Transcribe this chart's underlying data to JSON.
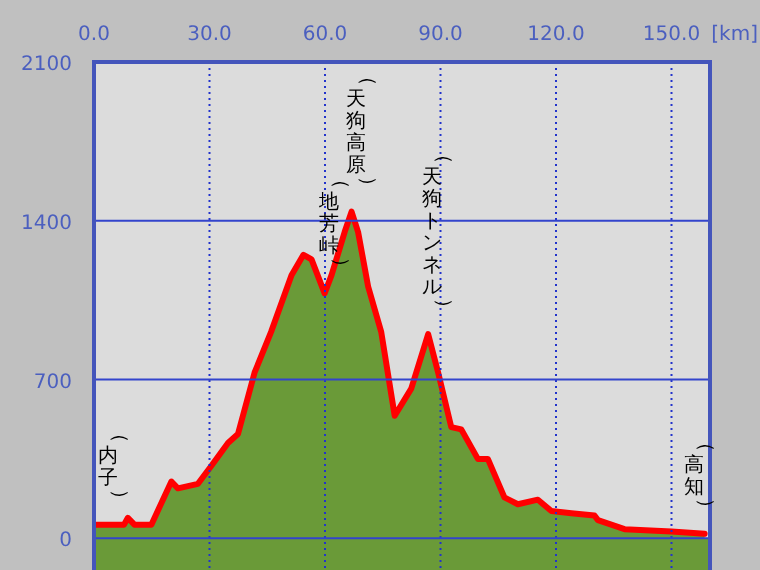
{
  "chart_data": {
    "type": "area",
    "xlabel": "[km]",
    "x": [
      0,
      7.8,
      8.8,
      10.5,
      14.9,
      20.1,
      21.8,
      27,
      30.5,
      34.8,
      37.4,
      41.7,
      46,
      51.3,
      54.4,
      56.5,
      59.9,
      61.7,
      65.1,
      66.9,
      68.6,
      71.2,
      74.6,
      78.1,
      82.4,
      86.8,
      89.4,
      92.8,
      95.4,
      99.7,
      102.3,
      106.6,
      110.1,
      115.3,
      118.8,
      124,
      130,
      130.9,
      137.8,
      150,
      158.6
    ],
    "series": [
      {
        "type": "area",
        "color": "#6a9a38",
        "values": [
          60,
          60,
          90,
          60,
          60,
          250,
          220,
          240,
          320,
          420,
          460,
          730,
          910,
          1160,
          1250,
          1230,
          1080,
          1160,
          1350,
          1440,
          1350,
          1110,
          910,
          540,
          660,
          900,
          730,
          490,
          480,
          350,
          350,
          180,
          150,
          170,
          120,
          110,
          100,
          80,
          40,
          30,
          20
        ]
      },
      {
        "type": "line",
        "color": "#ff0000",
        "values": [
          60,
          60,
          90,
          60,
          60,
          250,
          220,
          240,
          320,
          420,
          460,
          730,
          910,
          1160,
          1250,
          1230,
          1080,
          1160,
          1350,
          1440,
          1350,
          1110,
          910,
          540,
          660,
          900,
          730,
          490,
          480,
          350,
          350,
          180,
          150,
          170,
          120,
          110,
          100,
          80,
          40,
          30,
          20
        ]
      }
    ],
    "xlim": [
      0,
      160
    ],
    "ylim": [
      -140,
      2100
    ],
    "xticks": [
      {
        "value": 0,
        "label": "0.0"
      },
      {
        "value": 30,
        "label": "30.0"
      },
      {
        "value": 60,
        "label": "60.0"
      },
      {
        "value": 90,
        "label": "90.0"
      },
      {
        "value": 120,
        "label": "120.0"
      },
      {
        "value": 150,
        "label": "150.0"
      }
    ],
    "yticks": [
      0,
      700,
      1400,
      2100
    ],
    "grid": true,
    "annotations": [
      {
        "text": "（天狗高原）",
        "x": 66.9,
        "y": 1440
      },
      {
        "text": "（地芳峠）",
        "x": 59.9,
        "y": 1080
      },
      {
        "text": "（天狗トンネル）",
        "x": 86.8,
        "y": 900
      },
      {
        "text": "（内子）",
        "x": 0,
        "y": 60
      },
      {
        "text": "（高知）",
        "x": 158.6,
        "y": 20
      }
    ]
  }
}
